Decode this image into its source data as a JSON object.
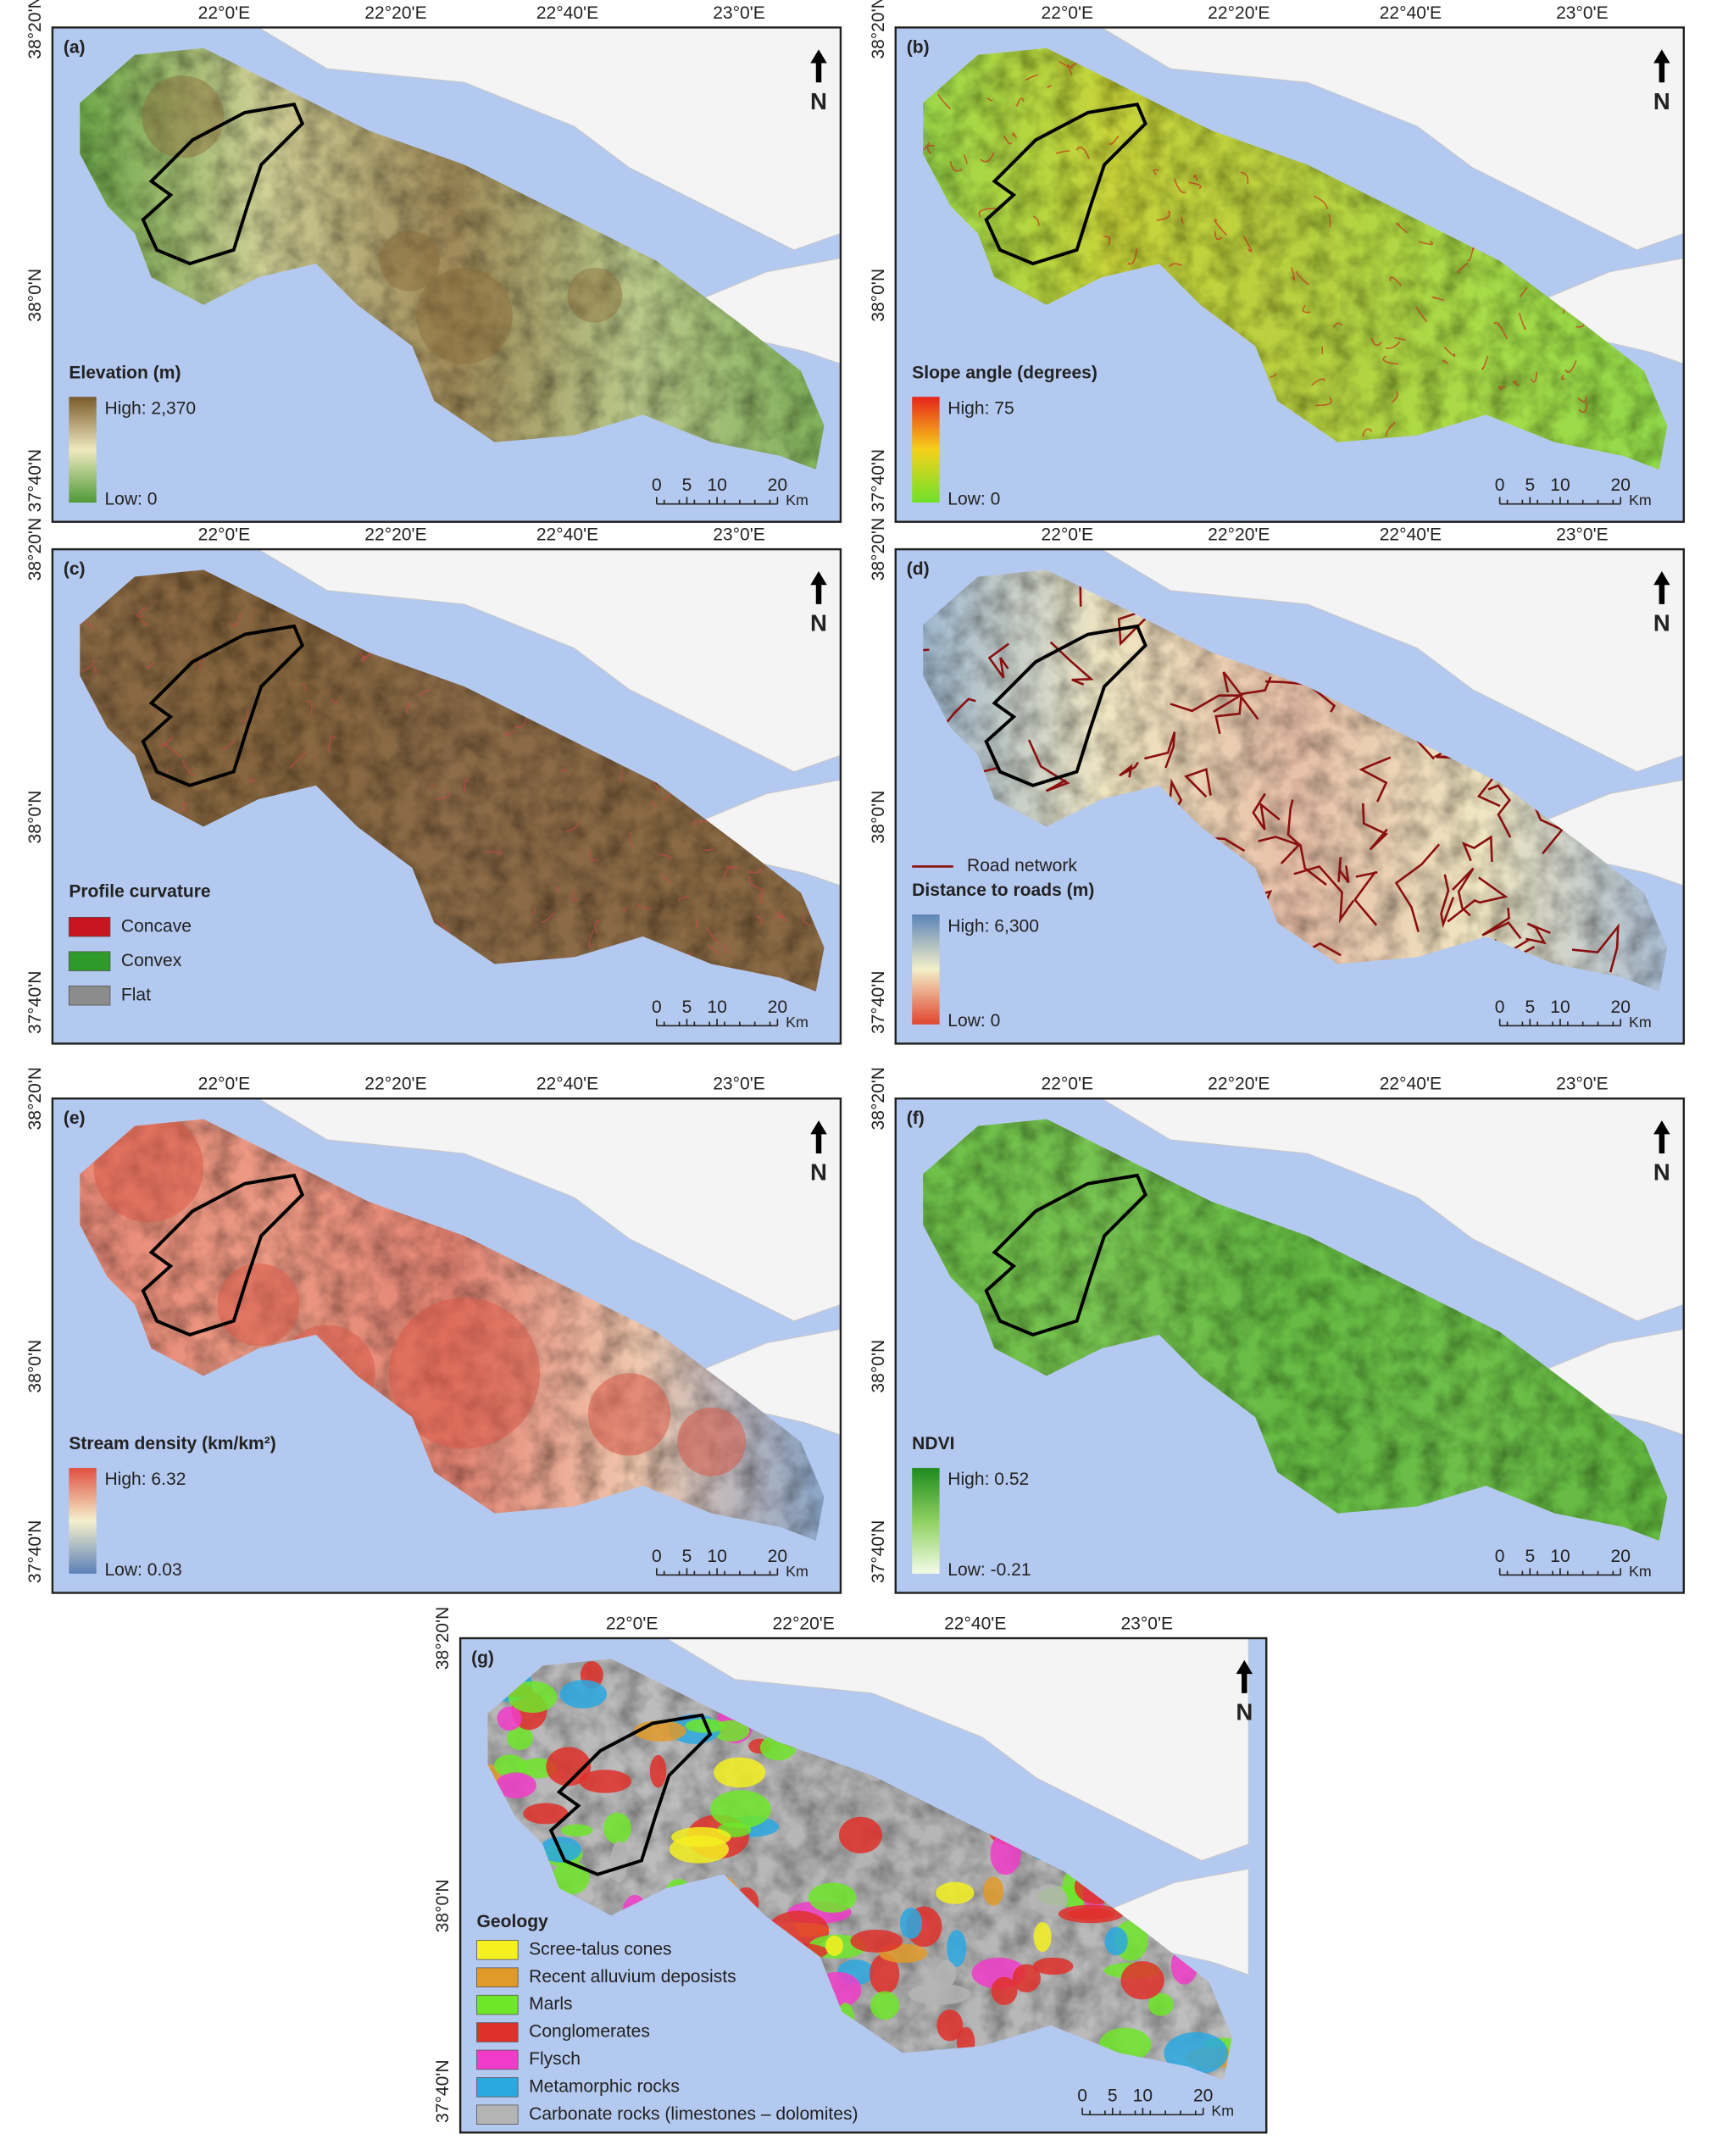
{
  "graticule": {
    "longitudes": [
      "22°0'E",
      "22°20'E",
      "22°40'E",
      "23°0'E"
    ],
    "latitudes": [
      "38°20'N",
      "38°0'N",
      "37°40'N"
    ]
  },
  "north_arrow": "N",
  "scale_bar": {
    "ticks": [
      "0",
      "5",
      "10",
      "20"
    ],
    "unit": "Km"
  },
  "panels": [
    {
      "label": "(a)",
      "legend": {
        "title": "Elevation (m)",
        "high": "High: 2,370",
        "low": "Low: 0"
      }
    },
    {
      "label": "(b)",
      "legend": {
        "title": "Slope angle (degrees)",
        "high": "High: 75",
        "low": "Low: 0"
      }
    },
    {
      "label": "(c)",
      "legend": {
        "title": "Profile curvature",
        "items": [
          {
            "name": "Concave",
            "color": "#c8141e"
          },
          {
            "name": "Convex",
            "color": "#2e9a2a"
          },
          {
            "name": "Flat",
            "color": "#8c8c8c"
          }
        ]
      }
    },
    {
      "label": "(d)",
      "legend": {
        "road": "Road network",
        "title": "Distance to roads (m)",
        "high": "High: 6,300",
        "low": "Low: 0"
      }
    },
    {
      "label": "(e)",
      "legend": {
        "title": "Stream density (km/km²)",
        "high": "High: 6.32",
        "low": "Low: 0.03"
      }
    },
    {
      "label": "(f)",
      "legend": {
        "title": "NDVI",
        "high": "High: 0.52",
        "low": "Low: -0.21"
      }
    },
    {
      "label": "(g)",
      "legend": {
        "title": "Geology",
        "items": [
          {
            "name": "Scree-talus cones",
            "color": "#f5f020"
          },
          {
            "name": "Recent alluvium deposists",
            "color": "#e09a2a"
          },
          {
            "name": "Marls",
            "color": "#6ee62a"
          },
          {
            "name": "Conglomerates",
            "color": "#e0302a"
          },
          {
            "name": "Flysch",
            "color": "#f03cc8"
          },
          {
            "name": "Metamorphic rocks",
            "color": "#2aa8e0"
          },
          {
            "name": "Carbonate rocks (limestones – dolomites)",
            "color": "#b4b4b4"
          }
        ]
      }
    }
  ]
}
